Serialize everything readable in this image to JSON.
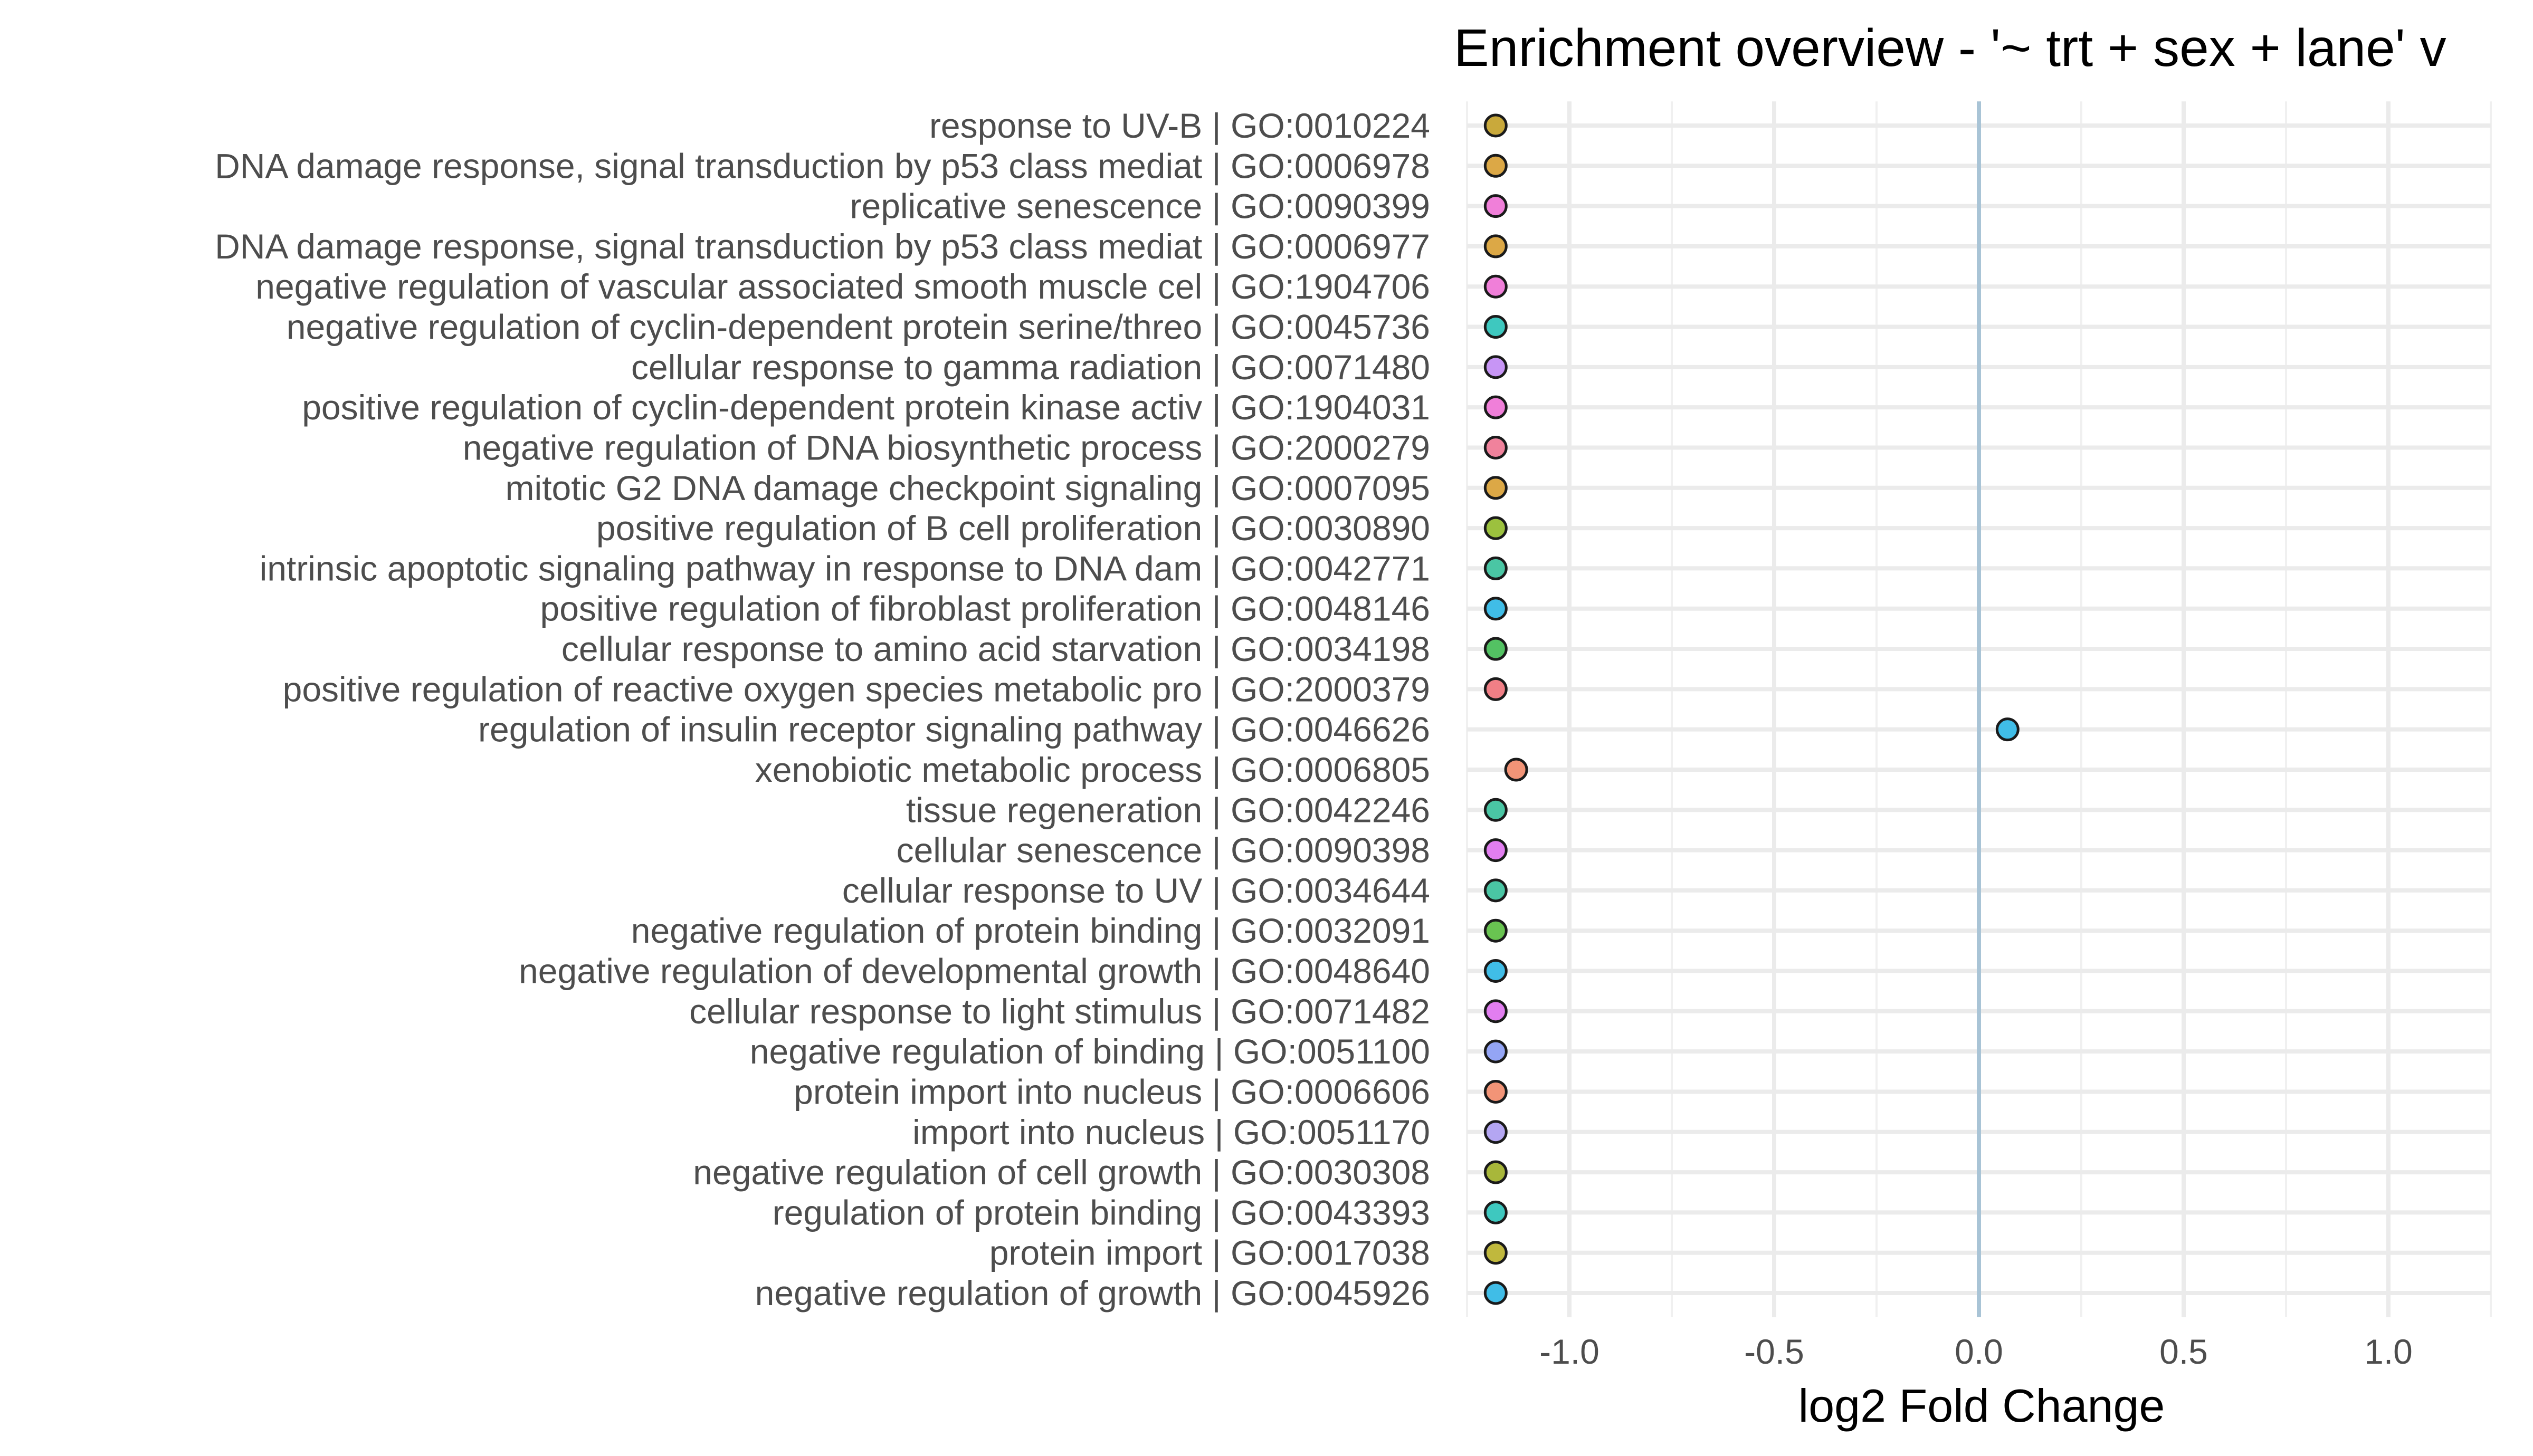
{
  "chart_data": {
    "type": "scatter",
    "title": "Enrichment overview - '~ trt + sex + lane' v",
    "xlabel": "log2 Fold Change",
    "ylabel": "",
    "xlim": [
      -1.25,
      1.25
    ],
    "xticks": [
      -1.0,
      -0.5,
      0.0,
      0.5,
      1.0
    ],
    "xtick_labels": [
      "-1.0",
      "-0.5",
      "0.0",
      "0.5",
      "1.0"
    ],
    "reference_line_x": 0.0,
    "reference_line_color": "#a9c4d6",
    "grid": true,
    "legend": "none",
    "categories": [
      "response to UV-B | GO:0010224",
      "DNA damage response, signal transduction by p53 class mediat | GO:0006978",
      "replicative senescence | GO:0090399",
      "DNA damage response, signal transduction by p53 class mediat | GO:0006977",
      "negative regulation of vascular associated smooth muscle cel | GO:1904706",
      "negative regulation of cyclin-dependent protein serine/threo | GO:0045736",
      "cellular response to gamma radiation | GO:0071480",
      "positive regulation of cyclin-dependent protein kinase activ | GO:1904031",
      "negative regulation of DNA biosynthetic process | GO:2000279",
      "mitotic G2 DNA damage checkpoint signaling | GO:0007095",
      "positive regulation of B cell proliferation | GO:0030890",
      "intrinsic apoptotic signaling pathway in response to DNA dam | GO:0042771",
      "positive regulation of fibroblast proliferation | GO:0048146",
      "cellular response to amino acid starvation | GO:0034198",
      "positive regulation of reactive oxygen species metabolic pro | GO:2000379",
      "regulation of insulin receptor signaling pathway | GO:0046626",
      "xenobiotic metabolic process | GO:0006805",
      "tissue regeneration | GO:0042246",
      "cellular senescence | GO:0090398",
      "cellular response to UV | GO:0034644",
      "negative regulation of protein binding | GO:0032091",
      "negative regulation of developmental growth | GO:0048640",
      "cellular response to light stimulus | GO:0071482",
      "negative regulation of binding | GO:0051100",
      "protein import into nucleus | GO:0006606",
      "import into nucleus | GO:0051170",
      "negative regulation of cell growth | GO:0030308",
      "regulation of protein binding | GO:0043393",
      "protein import | GO:0017038",
      "negative regulation of growth | GO:0045926"
    ],
    "values": [
      -1.18,
      -1.18,
      -1.18,
      -1.18,
      -1.18,
      -1.18,
      -1.18,
      -1.18,
      -1.18,
      -1.18,
      -1.18,
      -1.18,
      -1.18,
      -1.18,
      -1.18,
      0.07,
      -1.13,
      -1.18,
      -1.18,
      -1.18,
      -1.18,
      -1.18,
      -1.18,
      -1.18,
      -1.18,
      -1.18,
      -1.18,
      -1.18,
      -1.18,
      -1.18
    ],
    "colors": [
      "#c9a93b",
      "#dca846",
      "#f07fd9",
      "#dca846",
      "#f07fd9",
      "#3ec8bf",
      "#c795f5",
      "#f07fd9",
      "#f0829c",
      "#dca846",
      "#9cc13e",
      "#4ac6a4",
      "#40bde7",
      "#53c263",
      "#f07f86",
      "#40bde7",
      "#f29477",
      "#4ac6a4",
      "#e27ef0",
      "#4ac6a4",
      "#69c451",
      "#40bde7",
      "#e27ef0",
      "#94a5f5",
      "#f29477",
      "#b4a6f2",
      "#a8b73a",
      "#3ec8bf",
      "#c0b83d",
      "#40bde7"
    ]
  }
}
